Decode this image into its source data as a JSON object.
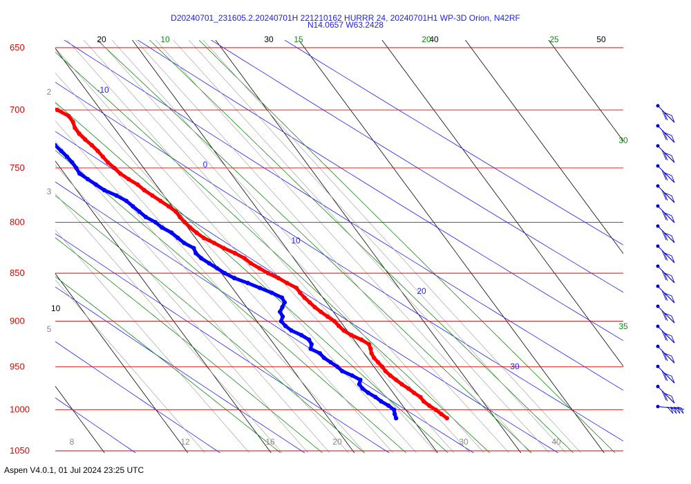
{
  "chart_data": {
    "type": "scatter",
    "title": "D20240701_231605.2.20240701H 221210162 HURRR 24, 20240701H1 WP-3D Orion, N42RF",
    "subtitle": "N14.0657 W63.2428",
    "footer": "Aspen V4.0.1, 01 Jul 2024  23:25 UTC",
    "pressure_levels": [
      650,
      700,
      750,
      800,
      850,
      900,
      950,
      1000,
      1050
    ],
    "pressure_labels": [
      "650",
      "700",
      "750",
      "800",
      "850",
      "900",
      "950",
      "1000",
      "1050"
    ],
    "isotherm_labels_top": [
      "20",
      "30",
      "40",
      "50"
    ],
    "isotherm_label_left": "10",
    "mixing_ratio_labels_bottom": [
      "8",
      "12",
      "16",
      "20",
      "30",
      "40"
    ],
    "mixing_ratio_labels_left": [
      "2",
      "3",
      "5"
    ],
    "dry_adiabat_labels": [
      "-10",
      "0",
      "10",
      "20",
      "30"
    ],
    "moist_adiabat_labels": [
      "10",
      "15",
      "20",
      "25",
      "30",
      "35"
    ],
    "colors": {
      "isobar": "#e00000",
      "isotherm": "#000000",
      "dry_adiabat": "#2020ff",
      "moist_adiabat": "#118811",
      "mixing_ratio": "#999999",
      "temperature": "#ff0000",
      "dewpoint": "#0000ff",
      "wind_barb": "#0000cc"
    },
    "series": [],
    "temperature_profile": [
      {
        "p": 1010,
        "t": 24.2
      },
      {
        "p": 1005,
        "t": 23.9
      },
      {
        "p": 1000,
        "t": 23.6
      },
      {
        "p": 995,
        "t": 23.2
      },
      {
        "p": 990,
        "t": 22.9
      },
      {
        "p": 985,
        "t": 22.9
      },
      {
        "p": 980,
        "t": 22.5
      },
      {
        "p": 975,
        "t": 22.2
      },
      {
        "p": 970,
        "t": 21.8
      },
      {
        "p": 965,
        "t": 21.5
      },
      {
        "p": 960,
        "t": 21.2
      },
      {
        "p": 955,
        "t": 21.0
      },
      {
        "p": 950,
        "t": 21.0
      },
      {
        "p": 945,
        "t": 20.9
      },
      {
        "p": 940,
        "t": 20.8
      },
      {
        "p": 935,
        "t": 20.9
      },
      {
        "p": 930,
        "t": 21.2
      },
      {
        "p": 925,
        "t": 21.4
      },
      {
        "p": 920,
        "t": 20.9
      },
      {
        "p": 915,
        "t": 20.1
      },
      {
        "p": 910,
        "t": 19.6
      },
      {
        "p": 905,
        "t": 19.4
      },
      {
        "p": 900,
        "t": 19.3
      },
      {
        "p": 895,
        "t": 18.9
      },
      {
        "p": 890,
        "t": 18.5
      },
      {
        "p": 885,
        "t": 18.2
      },
      {
        "p": 880,
        "t": 18.0
      },
      {
        "p": 875,
        "t": 17.8
      },
      {
        "p": 870,
        "t": 17.7
      },
      {
        "p": 865,
        "t": 17.7
      },
      {
        "p": 860,
        "t": 17.0
      },
      {
        "p": 855,
        "t": 16.4
      },
      {
        "p": 850,
        "t": 15.6
      },
      {
        "p": 845,
        "t": 15.0
      },
      {
        "p": 840,
        "t": 14.4
      },
      {
        "p": 835,
        "t": 14.1
      },
      {
        "p": 830,
        "t": 13.4
      },
      {
        "p": 825,
        "t": 12.5
      },
      {
        "p": 820,
        "t": 11.8
      },
      {
        "p": 815,
        "t": 11.0
      },
      {
        "p": 810,
        "t": 10.6
      },
      {
        "p": 805,
        "t": 10.3
      },
      {
        "p": 800,
        "t": 10.1
      },
      {
        "p": 795,
        "t": 10.0
      },
      {
        "p": 790,
        "t": 10.0
      },
      {
        "p": 785,
        "t": 9.6
      },
      {
        "p": 780,
        "t": 9.1
      },
      {
        "p": 775,
        "t": 8.6
      },
      {
        "p": 770,
        "t": 8.1
      },
      {
        "p": 765,
        "t": 7.8
      },
      {
        "p": 760,
        "t": 7.2
      },
      {
        "p": 755,
        "t": 6.7
      },
      {
        "p": 750,
        "t": 6.5
      },
      {
        "p": 745,
        "t": 6.2
      },
      {
        "p": 740,
        "t": 6.1
      },
      {
        "p": 735,
        "t": 6.0
      },
      {
        "p": 730,
        "t": 5.8
      },
      {
        "p": 725,
        "t": 5.5
      },
      {
        "p": 720,
        "t": 5.3
      },
      {
        "p": 715,
        "t": 5.3
      },
      {
        "p": 710,
        "t": 5.6
      },
      {
        "p": 705,
        "t": 5.6
      },
      {
        "p": 700,
        "t": 4.8
      },
      {
        "p": 697,
        "t": 3.7
      }
    ],
    "dewpoint_profile": [
      {
        "p": 1010,
        "t": 18.1
      },
      {
        "p": 1005,
        "t": 18.3
      },
      {
        "p": 1000,
        "t": 18.6
      },
      {
        "p": 995,
        "t": 18.3
      },
      {
        "p": 990,
        "t": 17.8
      },
      {
        "p": 985,
        "t": 17.5
      },
      {
        "p": 980,
        "t": 17.0
      },
      {
        "p": 975,
        "t": 16.7
      },
      {
        "p": 970,
        "t": 16.7
      },
      {
        "p": 965,
        "t": 17.2
      },
      {
        "p": 960,
        "t": 16.6
      },
      {
        "p": 955,
        "t": 15.8
      },
      {
        "p": 950,
        "t": 15.6
      },
      {
        "p": 945,
        "t": 15.2
      },
      {
        "p": 940,
        "t": 14.8
      },
      {
        "p": 935,
        "t": 14.7
      },
      {
        "p": 930,
        "t": 14.0
      },
      {
        "p": 925,
        "t": 14.5
      },
      {
        "p": 920,
        "t": 14.6
      },
      {
        "p": 915,
        "t": 14.1
      },
      {
        "p": 910,
        "t": 13.3
      },
      {
        "p": 905,
        "t": 13.0
      },
      {
        "p": 900,
        "t": 12.9
      },
      {
        "p": 895,
        "t": 13.5
      },
      {
        "p": 890,
        "t": 13.6
      },
      {
        "p": 885,
        "t": 14.3
      },
      {
        "p": 880,
        "t": 15.0
      },
      {
        "p": 875,
        "t": 15.1
      },
      {
        "p": 870,
        "t": 14.3
      },
      {
        "p": 865,
        "t": 13.3
      },
      {
        "p": 860,
        "t": 12.3
      },
      {
        "p": 855,
        "t": 11.1
      },
      {
        "p": 850,
        "t": 10.4
      },
      {
        "p": 845,
        "t": 9.9
      },
      {
        "p": 840,
        "t": 9.4
      },
      {
        "p": 835,
        "t": 8.9
      },
      {
        "p": 830,
        "t": 8.7
      },
      {
        "p": 825,
        "t": 8.9
      },
      {
        "p": 820,
        "t": 8.2
      },
      {
        "p": 815,
        "t": 7.9
      },
      {
        "p": 810,
        "t": 7.6
      },
      {
        "p": 805,
        "t": 6.9
      },
      {
        "p": 800,
        "t": 6.6
      },
      {
        "p": 795,
        "t": 5.9
      },
      {
        "p": 790,
        "t": 5.6
      },
      {
        "p": 785,
        "t": 5.3
      },
      {
        "p": 780,
        "t": 5.0
      },
      {
        "p": 775,
        "t": 4.3
      },
      {
        "p": 770,
        "t": 3.3
      },
      {
        "p": 765,
        "t": 2.8
      },
      {
        "p": 760,
        "t": 2.3
      },
      {
        "p": 755,
        "t": 1.8
      },
      {
        "p": 750,
        "t": 1.9
      },
      {
        "p": 745,
        "t": 1.9
      },
      {
        "p": 740,
        "t": 1.8
      },
      {
        "p": 735,
        "t": 1.6
      },
      {
        "p": 730,
        "t": 1.4
      },
      {
        "p": 725,
        "t": 1.2
      },
      {
        "p": 720,
        "t": 1.1
      },
      {
        "p": 715,
        "t": 0.9
      },
      {
        "p": 710,
        "t": 0.7
      },
      {
        "p": 705,
        "t": 0.9
      },
      {
        "p": 700,
        "t": 0.4
      },
      {
        "p": 697,
        "t": -0.2
      }
    ],
    "wind_barbs": [
      {
        "p": 703,
        "type": "barb"
      },
      {
        "p": 720,
        "type": "barb"
      },
      {
        "p": 740,
        "type": "barb"
      },
      {
        "p": 760,
        "type": "barb"
      },
      {
        "p": 780,
        "type": "barb"
      },
      {
        "p": 800,
        "type": "barb"
      },
      {
        "p": 820,
        "type": "barb"
      },
      {
        "p": 840,
        "type": "barb"
      },
      {
        "p": 860,
        "type": "barb"
      },
      {
        "p": 880,
        "type": "barb"
      },
      {
        "p": 900,
        "type": "barb"
      },
      {
        "p": 920,
        "type": "barb"
      },
      {
        "p": 940,
        "type": "barb"
      },
      {
        "p": 960,
        "type": "barb"
      },
      {
        "p": 980,
        "type": "barb"
      },
      {
        "p": 1000,
        "type": "flags"
      }
    ]
  }
}
